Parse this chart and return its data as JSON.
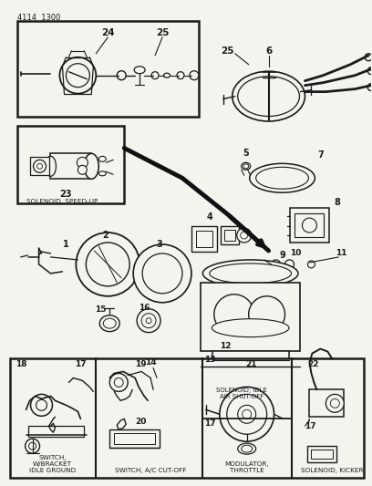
{
  "bg_color": "#f5f3ee",
  "line_color": "#1a1a1a",
  "text_color": "#1a1a1a",
  "fig_width": 4.08,
  "fig_height": 5.33,
  "dpi": 100,
  "header": "4114  1300",
  "labels": {
    "solenoid_speed_up": "SOLENOID, SPEED-UP",
    "switch_bracket": "SWITCH,\nW/BRACKET\nIDLE GROUND",
    "solenoid_idle": "SOLENOID, IDLE\nAIR SHUT-OFF",
    "switch_ac": "SWITCH, A/C CUT-OFF",
    "modulator": "MODULATOR,\nTHROTTLE",
    "solenoid_kicker": "SOLENOID, KICKER"
  }
}
